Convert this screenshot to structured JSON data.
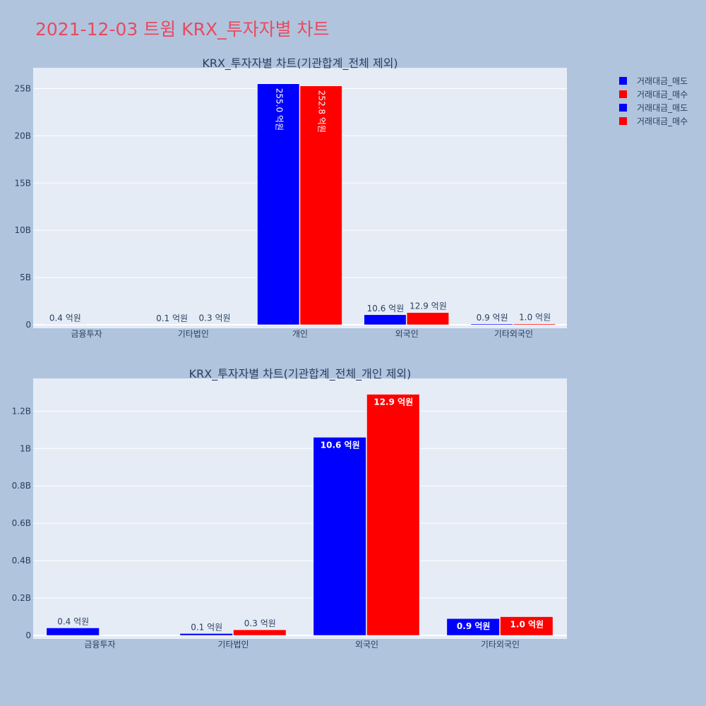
{
  "title": "2021-12-03 트윔 KRX_투자자별 차트",
  "legend": [
    {
      "label": "거래대금_매도",
      "color": "#0000ff"
    },
    {
      "label": "거래대금_매수",
      "color": "#ff0000"
    },
    {
      "label": "거래대금_매도",
      "color": "#0000ff"
    },
    {
      "label": "거래대금_매수",
      "color": "#ff0000"
    }
  ],
  "colors": {
    "background": "#b0c4de",
    "plot_bg": "#e5ecf6",
    "title": "#e84a5f",
    "text": "#2a3f5f",
    "sell": "#0000ff",
    "buy": "#ff0000"
  },
  "chart_data": [
    {
      "type": "bar",
      "title": "KRX_투자자별 차트(기관합계_전체 제외)",
      "categories": [
        "금융투자",
        "기타법인",
        "개인",
        "외국인",
        "기타외국인"
      ],
      "series": [
        {
          "name": "거래대금_매도",
          "color": "#0000ff",
          "values": [
            40000000,
            10000000,
            25500000000,
            1060000000,
            90000000
          ],
          "labels": [
            "0.4 억원",
            "0.1 억원",
            "255.0 억원",
            "10.6 억원",
            "0.9 억원"
          ]
        },
        {
          "name": "거래대금_매수",
          "color": "#ff0000",
          "values": [
            0,
            30000000,
            25280000000,
            1290000000,
            100000000
          ],
          "labels": [
            "",
            "0.3 억원",
            "252.8 억원",
            "12.9 억원",
            "1.0 억원"
          ]
        }
      ],
      "label_position": "auto",
      "y_ticks": [
        0,
        5000000000,
        10000000000,
        15000000000,
        20000000000,
        25000000000
      ],
      "y_tick_labels": [
        "0",
        "5B",
        "10B",
        "15B",
        "20B",
        "25B"
      ],
      "ylim": [
        0,
        27200000000
      ],
      "grid": true
    },
    {
      "type": "bar",
      "title": "KRX_투자자별 차트(기관합계_전체_개인 제외)",
      "categories": [
        "금융투자",
        "기타법인",
        "외국인",
        "기타외국인"
      ],
      "series": [
        {
          "name": "거래대금_매도",
          "color": "#0000ff",
          "values": [
            40000000,
            10000000,
            1060000000,
            90000000
          ],
          "labels": [
            "0.4 억원",
            "0.1 억원",
            "10.6 억원",
            "0.9 억원"
          ]
        },
        {
          "name": "거래대금_매수",
          "color": "#ff0000",
          "values": [
            0,
            30000000,
            1290000000,
            100000000
          ],
          "labels": [
            "",
            "0.3 억원",
            "12.9 억원",
            "1.0 억원"
          ]
        }
      ],
      "label_position": "auto",
      "y_ticks": [
        0,
        200000000,
        400000000,
        600000000,
        800000000,
        1000000000,
        1200000000
      ],
      "y_tick_labels": [
        "0",
        "0.2B",
        "0.4B",
        "0.6B",
        "0.8B",
        "1B",
        "1.2B"
      ],
      "ylim": [
        0,
        1375000000
      ],
      "grid": true
    }
  ]
}
